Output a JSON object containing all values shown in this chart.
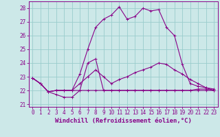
{
  "xlabel": "Windchill (Refroidissement éolien,°C)",
  "background_color": "#cce8e8",
  "grid_color": "#99cccc",
  "line_color": "#880088",
  "xlim": [
    -0.5,
    23.5
  ],
  "ylim": [
    20.8,
    28.5
  ],
  "yticks": [
    21,
    22,
    23,
    24,
    25,
    26,
    27,
    28
  ],
  "xticks": [
    0,
    1,
    2,
    3,
    4,
    5,
    6,
    7,
    8,
    9,
    10,
    11,
    12,
    13,
    14,
    15,
    16,
    17,
    18,
    19,
    20,
    21,
    22,
    23
  ],
  "series": [
    [
      22.9,
      22.5,
      21.9,
      21.7,
      21.5,
      21.5,
      22.0,
      22.0,
      22.0,
      22.0,
      22.0,
      22.0,
      22.0,
      22.0,
      22.0,
      22.0,
      22.0,
      22.0,
      22.0,
      22.0,
      22.0,
      22.0,
      22.0,
      22.0
    ],
    [
      22.9,
      22.5,
      21.9,
      22.0,
      22.0,
      22.0,
      22.0,
      24.0,
      24.3,
      22.0,
      22.0,
      22.0,
      22.0,
      22.0,
      22.0,
      22.0,
      22.0,
      22.0,
      22.0,
      22.0,
      22.0,
      22.1,
      22.1,
      22.0
    ],
    [
      22.9,
      22.5,
      21.9,
      22.0,
      22.0,
      22.0,
      22.5,
      23.0,
      23.5,
      23.0,
      22.5,
      22.8,
      23.0,
      23.3,
      23.5,
      23.7,
      24.0,
      23.9,
      23.5,
      23.2,
      22.8,
      22.5,
      22.2,
      22.0
    ],
    [
      22.9,
      22.5,
      21.9,
      22.0,
      22.0,
      22.0,
      23.2,
      25.0,
      26.6,
      27.2,
      27.5,
      28.1,
      27.2,
      27.4,
      28.0,
      27.8,
      27.9,
      26.6,
      26.0,
      23.9,
      22.5,
      22.3,
      22.2,
      22.1
    ]
  ],
  "font_family": "monospace",
  "xlabel_fontsize": 6.5,
  "tick_fontsize": 5.5
}
